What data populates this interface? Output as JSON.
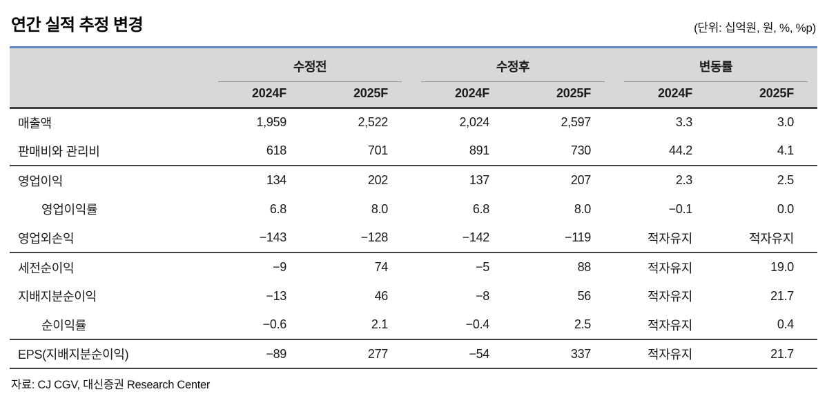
{
  "title": "연간 실적 추정 변경",
  "unit_note": "(단위: 십억원, 원, %, %p)",
  "table": {
    "col_groups": [
      {
        "label": "수정전"
      },
      {
        "label": "수정후"
      },
      {
        "label": "변동률"
      }
    ],
    "sub_headers": [
      "2024F",
      "2025F",
      "2024F",
      "2025F",
      "2024F",
      "2025F"
    ],
    "rows": [
      {
        "label": "매출액",
        "indent": false,
        "section_end": false,
        "values": [
          "1,959",
          "2,522",
          "2,024",
          "2,597",
          "3.3",
          "3.0"
        ]
      },
      {
        "label": "판매비와 관리비",
        "indent": false,
        "section_end": true,
        "values": [
          "618",
          "701",
          "891",
          "730",
          "44.2",
          "4.1"
        ]
      },
      {
        "label": "영업이익",
        "indent": false,
        "section_end": false,
        "values": [
          "134",
          "202",
          "137",
          "207",
          "2.3",
          "2.5"
        ]
      },
      {
        "label": "영업이익률",
        "indent": true,
        "section_end": false,
        "values": [
          "6.8",
          "8.0",
          "6.8",
          "8.0",
          "−0.1",
          "0.0"
        ]
      },
      {
        "label": "영업외손익",
        "indent": false,
        "section_end": true,
        "values": [
          "−143",
          "−128",
          "−142",
          "−119",
          "적자유지",
          "적자유지"
        ]
      },
      {
        "label": "세전순이익",
        "indent": false,
        "section_end": false,
        "values": [
          "−9",
          "74",
          "−5",
          "88",
          "적자유지",
          "19.0"
        ]
      },
      {
        "label": "지배지분순이익",
        "indent": false,
        "section_end": false,
        "values": [
          "−13",
          "46",
          "−8",
          "56",
          "적자유지",
          "21.7"
        ]
      },
      {
        "label": "순이익률",
        "indent": true,
        "section_end": true,
        "values": [
          "−0.6",
          "2.1",
          "−0.4",
          "2.5",
          "적자유지",
          "0.4"
        ]
      },
      {
        "label": "EPS(지배지분순이익)",
        "indent": false,
        "section_end": true,
        "values": [
          "−89",
          "277",
          "−54",
          "337",
          "적자유지",
          "21.7"
        ]
      }
    ]
  },
  "source": "자료: CJ CGV, 대신증권 Research Center",
  "colors": {
    "accent_blue": "#5f87be",
    "header_bg": "#d8d8d8",
    "dark_border": "#3f3f3f",
    "group_underline": "#8a8a8a"
  }
}
